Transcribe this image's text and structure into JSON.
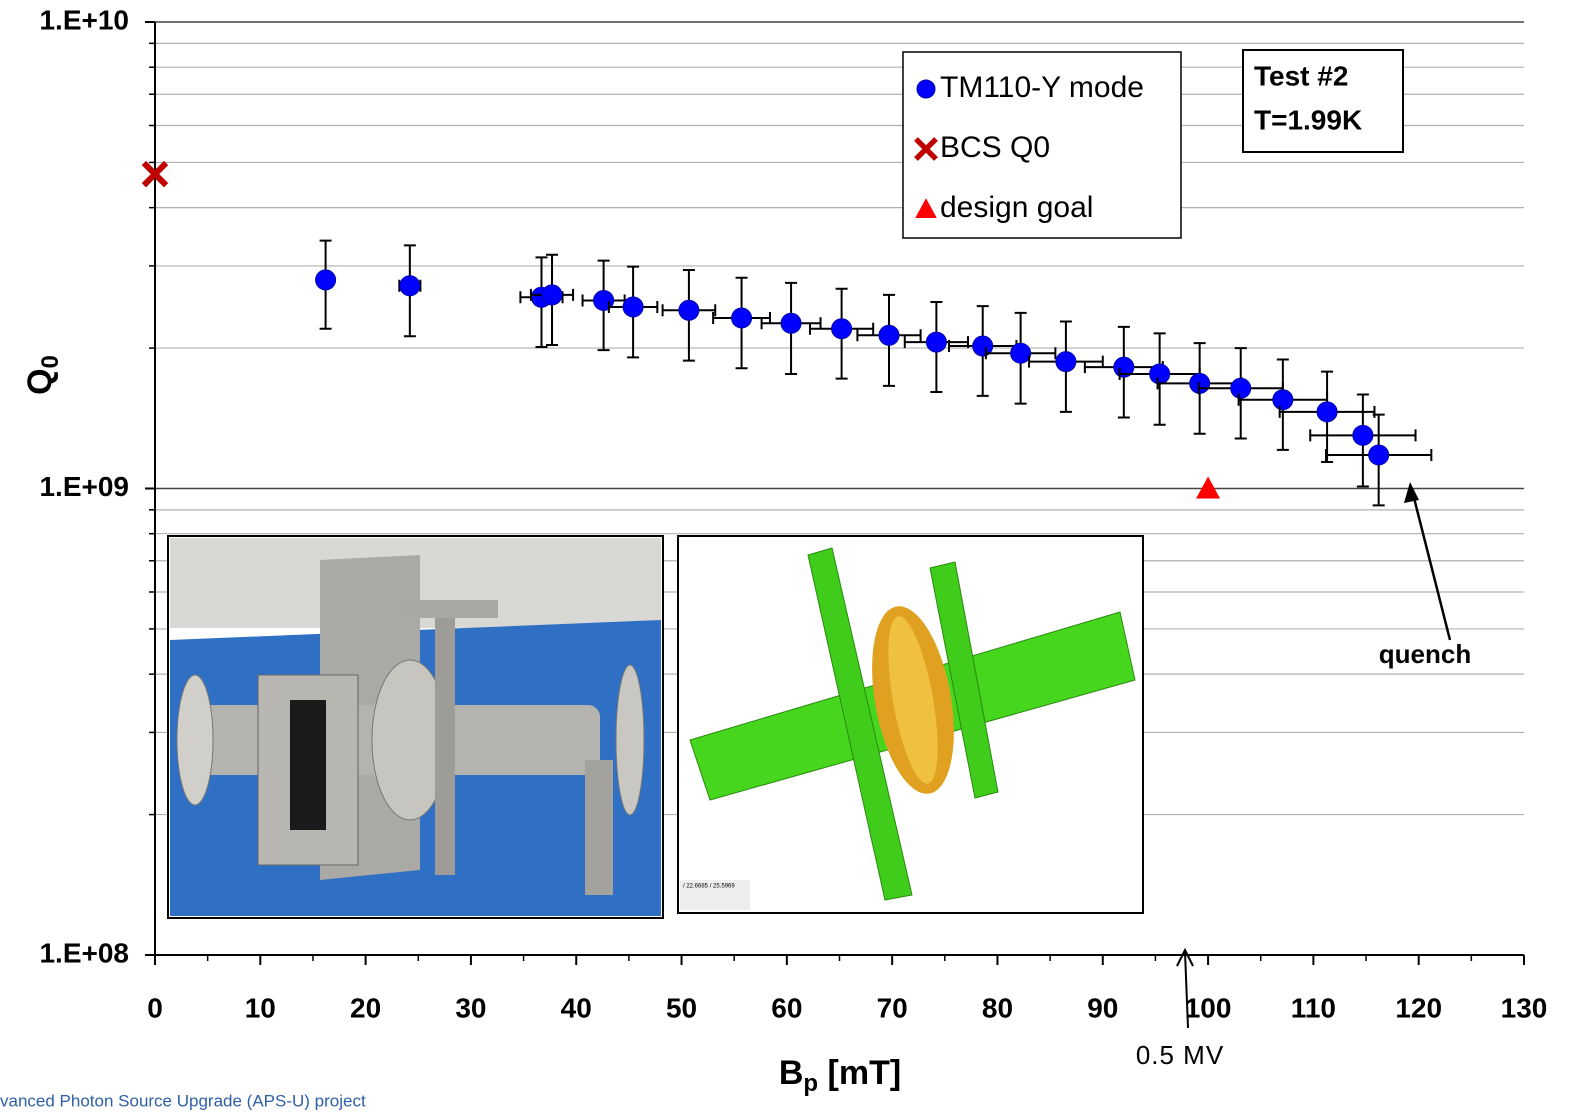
{
  "chart_data": {
    "type": "scatter",
    "log_y": true,
    "grid": true,
    "xlim": [
      0,
      130
    ],
    "ylim": [
      100000000.0,
      10000000000.0
    ],
    "xticks": [
      0,
      10,
      20,
      30,
      40,
      50,
      60,
      70,
      80,
      90,
      100,
      110,
      120,
      130
    ],
    "minor_xticks": [
      5,
      15,
      25,
      35,
      45,
      55,
      65,
      75,
      85,
      95,
      105,
      115,
      125
    ],
    "yticks": [
      {
        "value": 100000000.0,
        "label": "1.E+08"
      },
      {
        "value": 1000000000.0,
        "label": "1.E+09"
      },
      {
        "value": 10000000000.0,
        "label": "1.E+10"
      }
    ],
    "minor_yticks": [
      200000000.0,
      300000000.0,
      400000000.0,
      500000000.0,
      600000000.0,
      700000000.0,
      800000000.0,
      900000000.0,
      2000000000.0,
      3000000000.0,
      4000000000.0,
      5000000000.0,
      6000000000.0,
      7000000000.0,
      8000000000.0,
      9000000000.0
    ],
    "ylabel": {
      "main": "Q",
      "sub": "0"
    },
    "xlabel": {
      "main": "B",
      "sub": "p",
      "rest": " [mT]"
    },
    "series": [
      {
        "name": "TM110-Y mode",
        "color": "#0000ff",
        "marker": "circle",
        "x": [
          16.2,
          24.2,
          36.7,
          37.7,
          42.6,
          45.4,
          50.7,
          55.7,
          60.4,
          65.2,
          69.7,
          74.2,
          78.6,
          82.2,
          86.5,
          92.0,
          95.4,
          99.2,
          103.1,
          107.1,
          111.3,
          114.7,
          116.2
        ],
        "values": [
          2800000000.0,
          2720000000.0,
          2570000000.0,
          2600000000.0,
          2530000000.0,
          2450000000.0,
          2410000000.0,
          2320000000.0,
          2260000000.0,
          2200000000.0,
          2130000000.0,
          2060000000.0,
          2020000000.0,
          1950000000.0,
          1870000000.0,
          1820000000.0,
          1760000000.0,
          1680000000.0,
          1640000000.0,
          1550000000.0,
          1460000000.0,
          1300000000.0,
          1180000000.0
        ],
        "xerr": [
          0.3,
          1,
          2,
          2,
          2,
          2.3,
          2.5,
          2.7,
          2.8,
          3,
          3,
          3,
          3.2,
          3.3,
          3.5,
          3.7,
          3.8,
          4,
          4,
          4.2,
          4.5,
          5,
          5
        ],
        "yerr": [
          600000000.0,
          600000000.0,
          560000000.0,
          570000000.0,
          550000000.0,
          540000000.0,
          530000000.0,
          510000000.0,
          500000000.0,
          480000000.0,
          470000000.0,
          450000000.0,
          440000000.0,
          430000000.0,
          410000000.0,
          400000000.0,
          390000000.0,
          370000000.0,
          360000000.0,
          340000000.0,
          320000000.0,
          290000000.0,
          260000000.0
        ]
      },
      {
        "name": "BCS Q0",
        "color": "#c00000",
        "marker": "x",
        "x": [
          0
        ],
        "values": [
          4720000000.0
        ]
      },
      {
        "name": "design goal",
        "color": "#ff0000",
        "marker": "triangle",
        "x": [
          100
        ],
        "values": [
          1000000000.0
        ]
      }
    ],
    "info_box": [
      "Test #2",
      "T=1.99K"
    ],
    "annotations": [
      "quench",
      "0.5 MV"
    ],
    "inset_label": "/ 22.6685 / 25.5969",
    "footer": "vanced Photon Source Upgrade (APS-U) project"
  }
}
